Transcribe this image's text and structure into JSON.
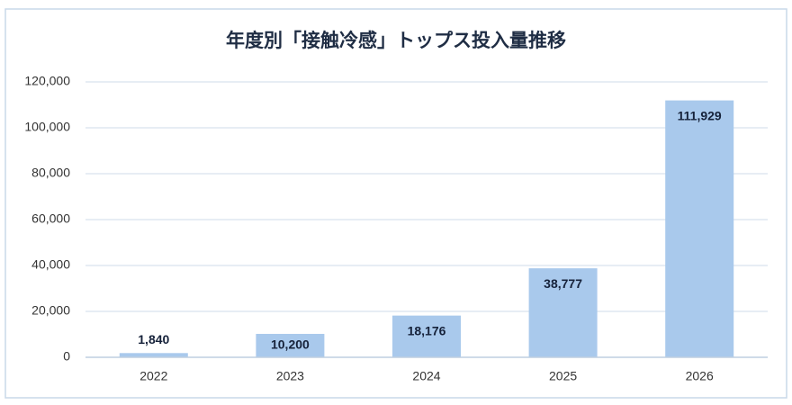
{
  "chart_data": {
    "type": "bar",
    "title": "年度別「接触冷感」トップス投入量推移",
    "categories": [
      "2022",
      "2023",
      "2024",
      "2025",
      "2026"
    ],
    "values": [
      1840,
      10200,
      18176,
      38777,
      111929
    ],
    "value_labels": [
      "1,840",
      "10,200",
      "18,176",
      "38,777",
      "111,929"
    ],
    "color": "#a9c9ec",
    "ylim": [
      0,
      120000
    ],
    "yticks": [
      0,
      {
        "value": 20000,
        "label": "20,000"
      },
      {
        "value": 40000,
        "label": "40,000"
      },
      {
        "value": 60000,
        "label": "60,000"
      },
      {
        "value": 80000,
        "label": "80,000"
      },
      {
        "value": 100000,
        "label": "100,000"
      },
      {
        "value": 120000,
        "label": "120,000"
      }
    ],
    "grid": true
  }
}
